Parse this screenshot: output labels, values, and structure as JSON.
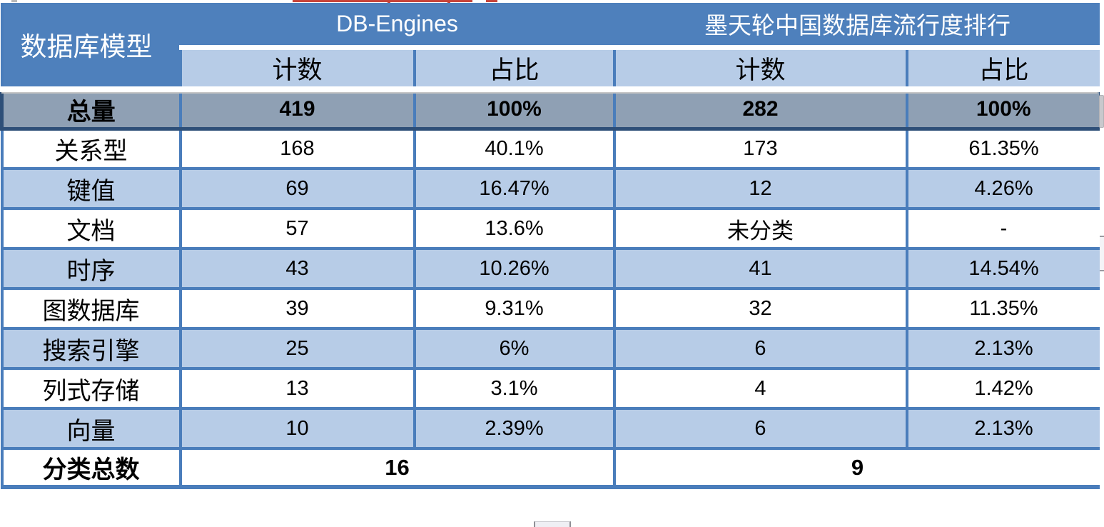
{
  "chart_data": {
    "type": "table",
    "corner_header": "数据库模型",
    "column_groups": [
      {
        "label": "DB-Engines",
        "columns": [
          "计数",
          "占比"
        ]
      },
      {
        "label": "墨天轮中国数据库流行度排行",
        "columns": [
          "计数",
          "占比"
        ]
      }
    ],
    "rows": [
      {
        "label": "总量",
        "values": [
          "419",
          "100%",
          "282",
          "100%"
        ]
      },
      {
        "label": "关系型",
        "values": [
          "168",
          "40.1%",
          "173",
          "61.35%"
        ]
      },
      {
        "label": "键值",
        "values": [
          "69",
          "16.47%",
          "12",
          "4.26%"
        ]
      },
      {
        "label": "文档",
        "values": [
          "57",
          "13.6%",
          "未分类",
          "-"
        ]
      },
      {
        "label": "时序",
        "values": [
          "43",
          "10.26%",
          "41",
          "14.54%"
        ]
      },
      {
        "label": "图数据库",
        "values": [
          "39",
          "9.31%",
          "32",
          "11.35%"
        ]
      },
      {
        "label": "搜索引擎",
        "values": [
          "25",
          "6%",
          "6",
          "2.13%"
        ]
      },
      {
        "label": "列式存储",
        "values": [
          "13",
          "3.1%",
          "4",
          "1.42%"
        ]
      },
      {
        "label": "向量",
        "values": [
          "10",
          "2.39%",
          "6",
          "2.13%"
        ]
      }
    ],
    "footer": {
      "label": "分类总数",
      "values": [
        "16",
        "9"
      ]
    }
  },
  "colors": {
    "header_blue": "#4e80bc",
    "band_light_blue": "#b7cce7",
    "total_row_gray": "#8fa0b4",
    "grid_border_blue": "#4a7dbb",
    "total_border_navy": "#2e4f78",
    "artifact_red": "#c7443a",
    "scrollbar_thumb_gray": "#c8c8cc"
  }
}
